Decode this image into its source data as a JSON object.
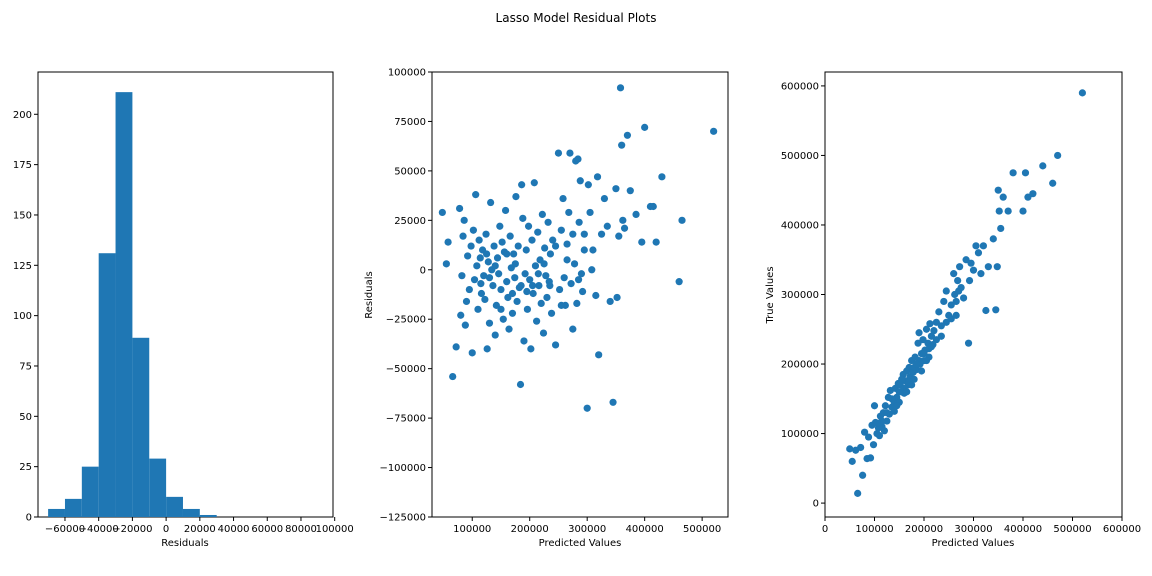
{
  "figure": {
    "title": "Lasso Model Residual Plots",
    "color": "#1f77b4"
  },
  "chart_data": [
    {
      "type": "bar",
      "subtype": "histogram",
      "xlabel": "Residuals",
      "ylabel": "",
      "xlim": [
        -76000,
        99000
      ],
      "ylim": [
        0,
        221
      ],
      "xticks": [
        -60000,
        -40000,
        -20000,
        0,
        20000,
        40000,
        60000,
        80000,
        100000
      ],
      "xtick_labels": [
        "−60000",
        "−40000",
        "−20000",
        "0",
        "20000",
        "40000",
        "60000",
        "80000",
        "100000"
      ],
      "yticks": [
        0,
        25,
        50,
        75,
        100,
        125,
        150,
        175,
        200
      ],
      "bins": [
        {
          "x0": -70000,
          "x1": -60000,
          "count": 4
        },
        {
          "x0": -60000,
          "x1": -50000,
          "count": 9
        },
        {
          "x0": -50000,
          "x1": -40000,
          "count": 25
        },
        {
          "x0": -40000,
          "x1": -30000,
          "count": 131
        },
        {
          "x0": -30000,
          "x1": -20000,
          "count": 211
        },
        {
          "x0": -20000,
          "x1": -10000,
          "count": 89
        },
        {
          "x0": -10000,
          "x1": 0,
          "count": 29
        },
        {
          "x0": 0,
          "x1": 10000,
          "count": 10
        },
        {
          "x0": 10000,
          "x1": 20000,
          "count": 4
        },
        {
          "x0": 20000,
          "x1": 30000,
          "count": 1
        }
      ]
    },
    {
      "type": "scatter",
      "xlabel": "Predicted Values",
      "ylabel": "Residuals",
      "xlim": [
        30000,
        545000
      ],
      "ylim": [
        -125000,
        100000
      ],
      "xticks": [
        100000,
        200000,
        300000,
        400000,
        500000
      ],
      "yticks": [
        -125000,
        -100000,
        -75000,
        -50000,
        -25000,
        0,
        25000,
        50000,
        75000,
        100000
      ],
      "ytick_labels": [
        "−125000",
        "−100000",
        "−75000",
        "−50000",
        "−25000",
        "0",
        "25000",
        "50000",
        "75000",
        "100000"
      ],
      "points": [
        [
          48000,
          29000
        ],
        [
          55000,
          3000
        ],
        [
          58000,
          14000
        ],
        [
          66000,
          -54000
        ],
        [
          72000,
          -39000
        ],
        [
          78000,
          31000
        ],
        [
          80000,
          -23000
        ],
        [
          82000,
          -3000
        ],
        [
          84000,
          17000
        ],
        [
          86000,
          25000
        ],
        [
          88000,
          -28000
        ],
        [
          90000,
          -16000
        ],
        [
          92000,
          7000
        ],
        [
          95000,
          -10000
        ],
        [
          98000,
          12000
        ],
        [
          100000,
          -42000
        ],
        [
          102000,
          20000
        ],
        [
          104000,
          -5000
        ],
        [
          106000,
          38000
        ],
        [
          108000,
          2000
        ],
        [
          110000,
          -20000
        ],
        [
          112000,
          15000
        ],
        [
          114000,
          6000
        ],
        [
          116000,
          -12000
        ],
        [
          118000,
          10000
        ],
        [
          120000,
          -3000
        ],
        [
          122000,
          -15000
        ],
        [
          124000,
          18000
        ],
        [
          126000,
          -40000
        ],
        [
          128000,
          4000
        ],
        [
          130000,
          -27000
        ],
        [
          132000,
          34000
        ],
        [
          134000,
          0
        ],
        [
          136000,
          -8000
        ],
        [
          138000,
          12000
        ],
        [
          140000,
          -33000
        ],
        [
          142000,
          -18000
        ],
        [
          144000,
          6000
        ],
        [
          146000,
          -2000
        ],
        [
          148000,
          22000
        ],
        [
          150000,
          -10000
        ],
        [
          152000,
          14000
        ],
        [
          154000,
          -25000
        ],
        [
          156000,
          9000
        ],
        [
          158000,
          30000
        ],
        [
          160000,
          -6000
        ],
        [
          162000,
          -14000
        ],
        [
          164000,
          -30000
        ],
        [
          166000,
          17000
        ],
        [
          168000,
          1000
        ],
        [
          170000,
          -22000
        ],
        [
          172000,
          8000
        ],
        [
          174000,
          -4000
        ],
        [
          176000,
          37000
        ],
        [
          178000,
          -16000
        ],
        [
          180000,
          12000
        ],
        [
          182000,
          -9000
        ],
        [
          184000,
          -58000
        ],
        [
          186000,
          43000
        ],
        [
          188000,
          26000
        ],
        [
          190000,
          -36000
        ],
        [
          192000,
          -2000
        ],
        [
          194000,
          10000
        ],
        [
          196000,
          -20000
        ],
        [
          198000,
          22000
        ],
        [
          200000,
          -5000
        ],
        [
          202000,
          -40000
        ],
        [
          204000,
          15000
        ],
        [
          206000,
          -12000
        ],
        [
          208000,
          44000
        ],
        [
          210000,
          2000
        ],
        [
          212000,
          -26000
        ],
        [
          214000,
          19000
        ],
        [
          216000,
          -8000
        ],
        [
          218000,
          5000
        ],
        [
          220000,
          -17000
        ],
        [
          222000,
          28000
        ],
        [
          224000,
          -32000
        ],
        [
          226000,
          11000
        ],
        [
          228000,
          -3000
        ],
        [
          230000,
          -14000
        ],
        [
          232000,
          24000
        ],
        [
          234000,
          -6000
        ],
        [
          236000,
          8000
        ],
        [
          238000,
          -22000
        ],
        [
          240000,
          15000
        ],
        [
          245000,
          -38000
        ],
        [
          250000,
          59000
        ],
        [
          252000,
          -10000
        ],
        [
          255000,
          20000
        ],
        [
          258000,
          36000
        ],
        [
          260000,
          -4000
        ],
        [
          262000,
          -18000
        ],
        [
          265000,
          13000
        ],
        [
          268000,
          29000
        ],
        [
          270000,
          59000
        ],
        [
          272000,
          -7000
        ],
        [
          275000,
          -30000
        ],
        [
          278000,
          3000
        ],
        [
          280000,
          55000
        ],
        [
          282000,
          -17000
        ],
        [
          284000,
          56000
        ],
        [
          286000,
          24000
        ],
        [
          288000,
          45000
        ],
        [
          290000,
          -2000
        ],
        [
          292000,
          -11000
        ],
        [
          295000,
          18000
        ],
        [
          300000,
          -70000
        ],
        [
          302000,
          43000
        ],
        [
          305000,
          29000
        ],
        [
          308000,
          0
        ],
        [
          310000,
          10000
        ],
        [
          315000,
          -13000
        ],
        [
          318000,
          47000
        ],
        [
          320000,
          -43000
        ],
        [
          325000,
          18000
        ],
        [
          330000,
          36000
        ],
        [
          335000,
          22000
        ],
        [
          340000,
          -16000
        ],
        [
          345000,
          -67000
        ],
        [
          350000,
          41000
        ],
        [
          352000,
          -14000
        ],
        [
          355000,
          17000
        ],
        [
          358000,
          92000
        ],
        [
          360000,
          63000
        ],
        [
          362000,
          25000
        ],
        [
          365000,
          21000
        ],
        [
          370000,
          68000
        ],
        [
          375000,
          40000
        ],
        [
          385000,
          28000
        ],
        [
          395000,
          14000
        ],
        [
          400000,
          72000
        ],
        [
          410000,
          32000
        ],
        [
          415000,
          32000
        ],
        [
          420000,
          14000
        ],
        [
          430000,
          47000
        ],
        [
          460000,
          -6000
        ],
        [
          465000,
          25000
        ],
        [
          520000,
          70000
        ],
        [
          160000,
          8000
        ],
        [
          170000,
          -12000
        ],
        [
          175000,
          3000
        ],
        [
          185000,
          -8000
        ],
        [
          195000,
          -11000
        ],
        [
          140000,
          2000
        ],
        [
          130000,
          -4000
        ],
        [
          125000,
          8000
        ],
        [
          115000,
          -7000
        ],
        [
          150000,
          -20000
        ],
        [
          205000,
          -8000
        ],
        [
          215000,
          -2000
        ],
        [
          225000,
          3000
        ],
        [
          235000,
          -8000
        ],
        [
          245000,
          12000
        ],
        [
          255000,
          -18000
        ],
        [
          265000,
          5000
        ],
        [
          275000,
          18000
        ],
        [
          285000,
          -5000
        ],
        [
          295000,
          10000
        ]
      ]
    },
    {
      "type": "scatter",
      "xlabel": "Predicted Values",
      "ylabel": "True Values",
      "xlim": [
        0,
        600000
      ],
      "ylim": [
        -20000,
        620000
      ],
      "xticks": [
        0,
        100000,
        200000,
        300000,
        400000,
        500000,
        600000
      ],
      "yticks": [
        0,
        100000,
        200000,
        300000,
        400000,
        500000,
        600000
      ],
      "points": [
        [
          50000,
          78000
        ],
        [
          55000,
          60000
        ],
        [
          62000,
          76000
        ],
        [
          66000,
          14000
        ],
        [
          72000,
          80000
        ],
        [
          76000,
          40000
        ],
        [
          80000,
          102000
        ],
        [
          85000,
          64000
        ],
        [
          88000,
          95000
        ],
        [
          92000,
          65000
        ],
        [
          95000,
          112000
        ],
        [
          98000,
          84000
        ],
        [
          100000,
          140000
        ],
        [
          102000,
          116000
        ],
        [
          105000,
          100000
        ],
        [
          108000,
          108000
        ],
        [
          110000,
          97000
        ],
        [
          112000,
          125000
        ],
        [
          115000,
          110000
        ],
        [
          118000,
          130000
        ],
        [
          120000,
          104000
        ],
        [
          122000,
          140000
        ],
        [
          125000,
          118000
        ],
        [
          128000,
          152000
        ],
        [
          130000,
          128000
        ],
        [
          132000,
          162000
        ],
        [
          135000,
          138000
        ],
        [
          138000,
          148000
        ],
        [
          140000,
          132000
        ],
        [
          142000,
          165000
        ],
        [
          145000,
          152000
        ],
        [
          148000,
          172000
        ],
        [
          150000,
          145000
        ],
        [
          152000,
          170000
        ],
        [
          155000,
          160000
        ],
        [
          158000,
          185000
        ],
        [
          160000,
          158000
        ],
        [
          162000,
          176000
        ],
        [
          165000,
          190000
        ],
        [
          168000,
          170000
        ],
        [
          170000,
          195000
        ],
        [
          172000,
          182000
        ],
        [
          175000,
          205000
        ],
        [
          178000,
          188000
        ],
        [
          180000,
          178000
        ],
        [
          182000,
          210000
        ],
        [
          185000,
          192000
        ],
        [
          188000,
          230000
        ],
        [
          190000,
          245000
        ],
        [
          192000,
          200000
        ],
        [
          195000,
          215000
        ],
        [
          198000,
          235000
        ],
        [
          200000,
          205000
        ],
        [
          202000,
          220000
        ],
        [
          205000,
          250000
        ],
        [
          208000,
          230000
        ],
        [
          210000,
          222000
        ],
        [
          212000,
          258000
        ],
        [
          215000,
          240000
        ],
        [
          218000,
          228000
        ],
        [
          220000,
          248000
        ],
        [
          225000,
          260000
        ],
        [
          230000,
          275000
        ],
        [
          235000,
          255000
        ],
        [
          240000,
          290000
        ],
        [
          245000,
          305000
        ],
        [
          250000,
          270000
        ],
        [
          255000,
          285000
        ],
        [
          260000,
          330000
        ],
        [
          262000,
          300000
        ],
        [
          265000,
          290000
        ],
        [
          268000,
          320000
        ],
        [
          270000,
          305000
        ],
        [
          272000,
          340000
        ],
        [
          275000,
          310000
        ],
        [
          280000,
          295000
        ],
        [
          285000,
          350000
        ],
        [
          290000,
          230000
        ],
        [
          292000,
          320000
        ],
        [
          295000,
          345000
        ],
        [
          300000,
          335000
        ],
        [
          305000,
          370000
        ],
        [
          310000,
          360000
        ],
        [
          315000,
          330000
        ],
        [
          320000,
          370000
        ],
        [
          325000,
          277000
        ],
        [
          330000,
          340000
        ],
        [
          340000,
          380000
        ],
        [
          345000,
          278000
        ],
        [
          348000,
          340000
        ],
        [
          350000,
          450000
        ],
        [
          352000,
          420000
        ],
        [
          355000,
          395000
        ],
        [
          360000,
          440000
        ],
        [
          370000,
          420000
        ],
        [
          380000,
          475000
        ],
        [
          400000,
          420000
        ],
        [
          405000,
          475000
        ],
        [
          410000,
          440000
        ],
        [
          420000,
          445000
        ],
        [
          440000,
          485000
        ],
        [
          460000,
          460000
        ],
        [
          470000,
          500000
        ],
        [
          520000,
          590000
        ],
        [
          140000,
          142000
        ],
        [
          150000,
          160000
        ],
        [
          160000,
          165000
        ],
        [
          170000,
          175000
        ],
        [
          180000,
          195000
        ],
        [
          190000,
          205000
        ],
        [
          200000,
          215000
        ],
        [
          210000,
          210000
        ],
        [
          125000,
          130000
        ],
        [
          115000,
          118000
        ],
        [
          105000,
          115000
        ],
        [
          135000,
          150000
        ],
        [
          145000,
          140000
        ],
        [
          155000,
          178000
        ],
        [
          165000,
          160000
        ],
        [
          175000,
          170000
        ],
        [
          185000,
          200000
        ],
        [
          195000,
          190000
        ],
        [
          205000,
          205000
        ],
        [
          215000,
          225000
        ],
        [
          225000,
          235000
        ],
        [
          235000,
          240000
        ],
        [
          245000,
          260000
        ],
        [
          255000,
          265000
        ],
        [
          265000,
          270000
        ]
      ]
    }
  ]
}
